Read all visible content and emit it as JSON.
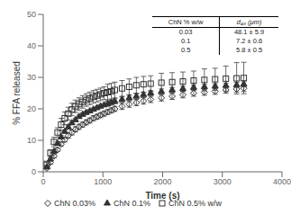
{
  "chart_data": {
    "type": "scatter",
    "xlabel": "Time (s)",
    "ylabel": "% FFA released",
    "xlim": [
      0,
      4000
    ],
    "ylim": [
      0,
      50
    ],
    "xticks": [
      0,
      1000,
      2000,
      3000,
      4000
    ],
    "yticks": [
      0,
      10,
      20,
      30,
      40,
      50
    ],
    "legend": "lower left",
    "x": [
      60,
      120,
      180,
      240,
      300,
      360,
      420,
      480,
      540,
      600,
      660,
      720,
      780,
      840,
      900,
      960,
      1020,
      1080,
      1140,
      1200,
      1320,
      1440,
      1560,
      1680,
      1800,
      1980,
      2160,
      2340,
      2520,
      2700,
      2880,
      3060,
      3240,
      3360
    ],
    "series": [
      {
        "name": "ChN 0.03%",
        "color": "#333333",
        "marker": "diamond_open",
        "values": [
          1.2,
          3.0,
          5.0,
          7.0,
          8.8,
          10.2,
          11.5,
          12.5,
          13.5,
          14.3,
          15.0,
          15.7,
          16.3,
          17.0,
          17.5,
          18.0,
          18.5,
          19.0,
          19.5,
          20.0,
          20.8,
          21.5,
          22.0,
          22.5,
          23.0,
          23.5,
          24.0,
          24.5,
          25.0,
          25.3,
          25.6,
          26.0,
          26.3,
          26.5
        ],
        "yerr": [
          0.3,
          0.5,
          0.5,
          0.5,
          0.6,
          0.7,
          0.8,
          0.8,
          0.8,
          0.8,
          0.8,
          0.8,
          0.8,
          0.8,
          0.8,
          0.8,
          0.8,
          0.8,
          0.8,
          0.8,
          1.0,
          1.0,
          1.0,
          1.0,
          1.0,
          1.0,
          1.0,
          1.0,
          1.0,
          1.0,
          1.0,
          1.0,
          1.0,
          1.0
        ]
      },
      {
        "name": "ChN 0.1%",
        "color": "#333333",
        "marker": "triangle",
        "values": [
          1.5,
          4.0,
          6.5,
          9.0,
          11.0,
          12.8,
          14.2,
          15.5,
          16.5,
          17.5,
          18.2,
          18.8,
          19.3,
          19.8,
          20.3,
          20.8,
          21.2,
          21.6,
          22.0,
          22.4,
          23.0,
          23.5,
          24.0,
          24.5,
          25.0,
          25.5,
          26.0,
          26.4,
          26.8,
          27.0,
          27.2,
          27.4,
          27.6,
          27.8
        ],
        "yerr": [
          0.3,
          0.5,
          0.5,
          0.5,
          0.5,
          0.5,
          0.5,
          0.5,
          0.5,
          0.5,
          0.5,
          0.5,
          0.5,
          0.5,
          0.5,
          0.5,
          0.5,
          0.8,
          0.8,
          0.8,
          0.8,
          0.8,
          0.8,
          0.8,
          0.8,
          0.8,
          0.8,
          0.8,
          0.8,
          0.8,
          0.8,
          0.8,
          0.8,
          0.8
        ]
      },
      {
        "name": "ChN 0.5% w/w",
        "color": "#333333",
        "marker": "square_open",
        "values": [
          2.5,
          6.0,
          9.5,
          12.5,
          15.0,
          17.0,
          18.5,
          19.8,
          20.8,
          21.5,
          22.2,
          22.8,
          23.3,
          23.8,
          24.2,
          24.6,
          25.0,
          25.3,
          25.6,
          26.0,
          26.5,
          27.0,
          27.5,
          27.8,
          28.0,
          28.3,
          28.5,
          28.7,
          29.0,
          29.2,
          29.4,
          29.6,
          29.7,
          29.8
        ],
        "yerr": [
          0.5,
          1.0,
          1.5,
          1.5,
          2.0,
          2.0,
          2.0,
          2.0,
          2.0,
          2.0,
          2.0,
          2.0,
          2.0,
          2.0,
          2.0,
          2.0,
          2.0,
          2.5,
          2.5,
          2.5,
          2.5,
          2.5,
          2.5,
          2.5,
          2.5,
          3.0,
          3.0,
          3.0,
          3.0,
          3.5,
          3.5,
          4.0,
          5.0,
          5.0
        ]
      }
    ],
    "table": {
      "headers": [
        "ChN % w/w",
        "d₄₃ (μm)"
      ],
      "rows": [
        [
          "0.03",
          "48.1 ± 5.9"
        ],
        [
          "0.1",
          "7.2 ± 0.6"
        ],
        [
          "0.5",
          "5.8 ± 0.5"
        ]
      ]
    }
  }
}
